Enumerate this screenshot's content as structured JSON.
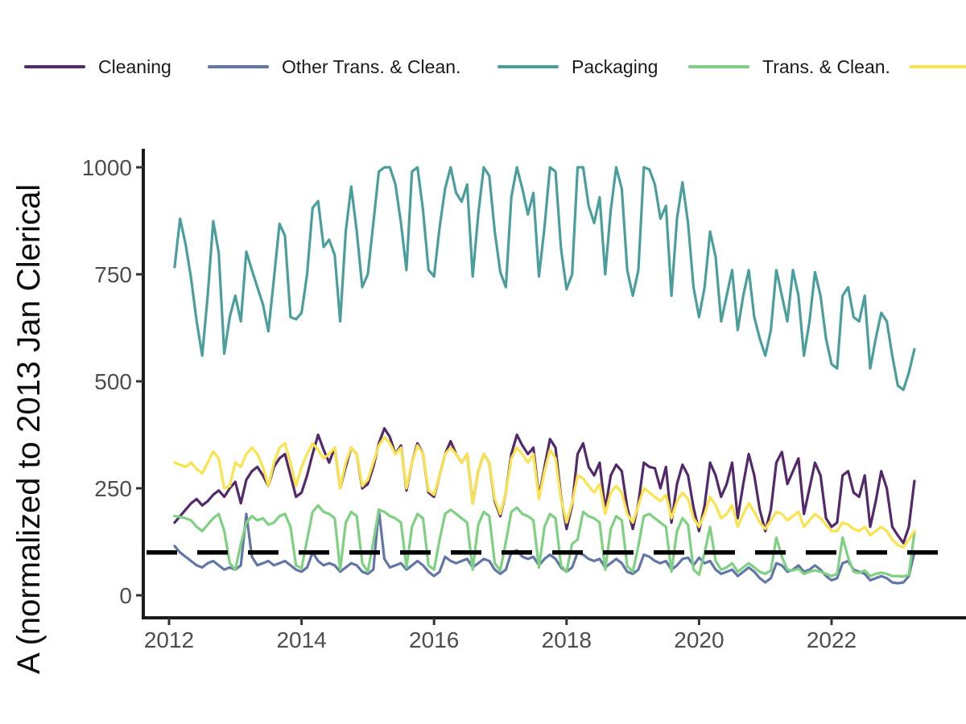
{
  "page": {
    "background": "#ffffff"
  },
  "chart_data": {
    "type": "line",
    "title": "",
    "xlabel": "",
    "ylabel": "A (normalized to 2013 Jan Clerical",
    "legend_position": "top",
    "grid": "off",
    "x_start_year": 2012,
    "x_start_month": 2,
    "frequency": "monthly",
    "x_ticks": [
      2012,
      2014,
      2016,
      2018,
      2020,
      2022
    ],
    "y_ticks": [
      0,
      250,
      500,
      750,
      1000
    ],
    "xlim": [
      2011.6,
      2023.6
    ],
    "ylim": [
      0,
      1050
    ],
    "axis_color": "#1a1a1a",
    "tick_label_color": "#4d4d4d",
    "reference_line": {
      "y": 100,
      "style": "dashed",
      "color": "#000000"
    },
    "series": [
      {
        "name": "Cleaning",
        "color": "#54296c",
        "values": [
          170,
          185,
          200,
          215,
          225,
          210,
          220,
          235,
          245,
          230,
          250,
          265,
          215,
          270,
          290,
          300,
          280,
          255,
          300,
          320,
          330,
          280,
          230,
          240,
          280,
          330,
          375,
          340,
          310,
          345,
          250,
          300,
          345,
          330,
          250,
          260,
          300,
          355,
          390,
          370,
          330,
          350,
          245,
          310,
          355,
          330,
          240,
          230,
          280,
          330,
          360,
          330,
          310,
          330,
          215,
          290,
          330,
          310,
          220,
          185,
          240,
          330,
          375,
          350,
          330,
          345,
          230,
          300,
          365,
          345,
          230,
          155,
          210,
          330,
          355,
          300,
          280,
          310,
          200,
          280,
          305,
          290,
          205,
          155,
          215,
          310,
          300,
          297,
          250,
          300,
          170,
          260,
          305,
          280,
          205,
          150,
          210,
          310,
          280,
          230,
          260,
          310,
          180,
          260,
          330,
          280,
          200,
          150,
          200,
          310,
          335,
          260,
          290,
          320,
          190,
          250,
          310,
          280,
          180,
          160,
          170,
          280,
          290,
          240,
          230,
          280,
          160,
          220,
          290,
          250,
          160,
          140,
          122,
          160,
          267
        ]
      },
      {
        "name": "Other Trans. & Clean.",
        "color": "#6277a8",
        "values": [
          115,
          100,
          90,
          80,
          70,
          65,
          75,
          80,
          70,
          60,
          65,
          60,
          70,
          190,
          90,
          70,
          75,
          80,
          70,
          75,
          80,
          70,
          60,
          55,
          65,
          100,
          80,
          70,
          75,
          70,
          55,
          65,
          75,
          70,
          55,
          50,
          60,
          200,
          85,
          65,
          70,
          75,
          60,
          70,
          80,
          70,
          55,
          45,
          55,
          90,
          80,
          75,
          80,
          85,
          65,
          75,
          85,
          80,
          60,
          50,
          60,
          100,
          105,
          90,
          85,
          90,
          70,
          85,
          95,
          85,
          65,
          55,
          65,
          100,
          95,
          85,
          80,
          85,
          65,
          75,
          85,
          75,
          55,
          50,
          60,
          95,
          90,
          80,
          75,
          80,
          60,
          70,
          85,
          88,
          70,
          88,
          75,
          80,
          60,
          50,
          55,
          60,
          45,
          55,
          65,
          55,
          40,
          30,
          40,
          75,
          70,
          55,
          60,
          70,
          55,
          60,
          70,
          60,
          45,
          35,
          40,
          75,
          80,
          60,
          55,
          50,
          35,
          40,
          45,
          40,
          30,
          28,
          30,
          45,
          100
        ]
      },
      {
        "name": "Packaging",
        "color": "#4a9f9c",
        "values": [
          767,
          880,
          820,
          740,
          640,
          560,
          700,
          874,
          800,
          565,
          650,
          700,
          640,
          803,
          760,
          720,
          680,
          617,
          740,
          868,
          840,
          650,
          645,
          660,
          750,
          905,
          921,
          814,
          831,
          795,
          640,
          850,
          955,
          850,
          720,
          750,
          870,
          990,
          1000,
          1000,
          960,
          870,
          760,
          990,
          1000,
          900,
          760,
          745,
          860,
          950,
          1000,
          940,
          920,
          960,
          745,
          890,
          1000,
          980,
          850,
          755,
          720,
          930,
          1000,
          950,
          890,
          940,
          745,
          860,
          1000,
          990,
          810,
          715,
          750,
          1000,
          1000,
          910,
          870,
          930,
          750,
          900,
          1000,
          950,
          760,
          700,
          760,
          1000,
          995,
          960,
          880,
          910,
          700,
          880,
          965,
          870,
          720,
          650,
          720,
          850,
          790,
          640,
          700,
          760,
          620,
          700,
          760,
          650,
          600,
          560,
          620,
          760,
          700,
          640,
          760,
          700,
          560,
          640,
          755,
          700,
          600,
          540,
          530,
          700,
          720,
          650,
          640,
          700,
          530,
          600,
          660,
          640,
          560,
          490,
          480,
          520,
          575
        ]
      },
      {
        "name": "Trans. & Clean.",
        "color": "#7dd181",
        "values": [
          185,
          183,
          180,
          175,
          160,
          150,
          165,
          180,
          190,
          150,
          75,
          60,
          120,
          170,
          185,
          175,
          180,
          165,
          170,
          185,
          190,
          160,
          70,
          63,
          130,
          195,
          210,
          195,
          190,
          180,
          60,
          170,
          195,
          185,
          75,
          55,
          125,
          200,
          195,
          185,
          180,
          170,
          65,
          160,
          190,
          180,
          70,
          60,
          130,
          190,
          200,
          190,
          180,
          170,
          60,
          165,
          195,
          185,
          75,
          58,
          125,
          195,
          205,
          190,
          185,
          175,
          65,
          160,
          190,
          180,
          70,
          55,
          120,
          130,
          195,
          185,
          180,
          170,
          60,
          155,
          185,
          175,
          68,
          55,
          115,
          185,
          190,
          180,
          170,
          160,
          55,
          150,
          180,
          165,
          60,
          48,
          100,
          160,
          80,
          60,
          65,
          75,
          55,
          65,
          75,
          65,
          55,
          50,
          58,
          135,
          90,
          60,
          58,
          62,
          50,
          55,
          58,
          55,
          50,
          45,
          50,
          135,
          88,
          55,
          52,
          58,
          45,
          50,
          53,
          50,
          45,
          45,
          44,
          48,
          147
        ]
      },
      {
        "name": "",
        "color": "#fbe34d",
        "values": [
          310,
          305,
          300,
          310,
          295,
          285,
          310,
          336,
          320,
          250,
          255,
          310,
          300,
          330,
          345,
          330,
          300,
          255,
          310,
          345,
          355,
          310,
          255,
          300,
          330,
          355,
          340,
          320,
          330,
          345,
          250,
          310,
          345,
          330,
          255,
          270,
          310,
          350,
          370,
          355,
          330,
          345,
          250,
          310,
          350,
          330,
          245,
          235,
          280,
          330,
          345,
          330,
          310,
          330,
          215,
          290,
          330,
          310,
          225,
          190,
          240,
          320,
          345,
          330,
          310,
          330,
          225,
          290,
          340,
          320,
          225,
          170,
          215,
          280,
          273,
          255,
          240,
          260,
          190,
          240,
          255,
          240,
          190,
          170,
          210,
          250,
          240,
          230,
          220,
          235,
          180,
          220,
          240,
          225,
          180,
          160,
          190,
          230,
          210,
          180,
          190,
          210,
          160,
          190,
          215,
          195,
          170,
          155,
          175,
          195,
          190,
          175,
          185,
          195,
          160,
          175,
          190,
          180,
          165,
          150,
          150,
          170,
          165,
          155,
          150,
          160,
          140,
          150,
          160,
          150,
          130,
          117,
          112,
          130,
          150
        ]
      }
    ]
  }
}
